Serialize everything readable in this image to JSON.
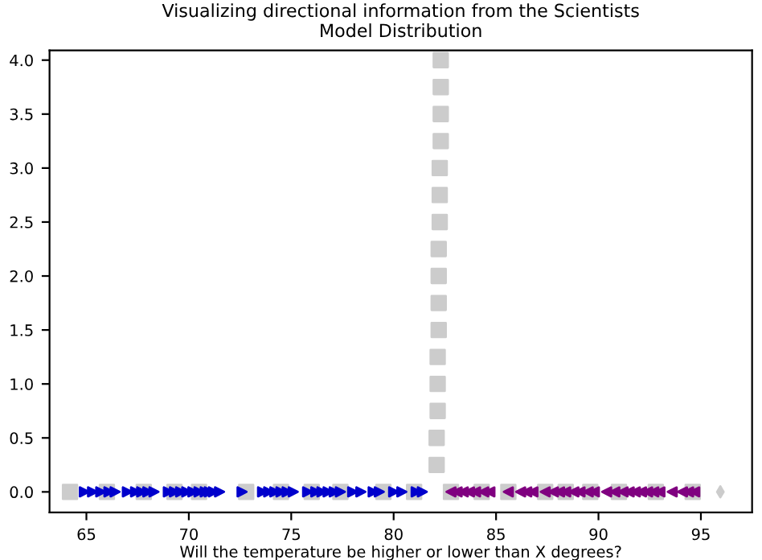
{
  "chart_data": {
    "type": "scatter",
    "title": "Visualizing directional information from the Scientists\nModel Distribution",
    "xlabel": "Will the temperature be higher or lower than X degrees?",
    "xlim": [
      63.2,
      97.5
    ],
    "ylim": [
      -0.19,
      4.09
    ],
    "xticks": [
      65,
      70,
      75,
      80,
      85,
      90,
      95
    ],
    "yticks": [
      {
        "value": 0,
        "label": "0.0"
      },
      {
        "value": 0.5,
        "label": "0.5"
      },
      {
        "value": 1,
        "label": "1.0"
      },
      {
        "value": 1.5,
        "label": "1.5"
      },
      {
        "value": 2,
        "label": "2.0"
      },
      {
        "value": 2.5,
        "label": "2.5"
      },
      {
        "value": 3,
        "label": "3.0"
      },
      {
        "value": 3.5,
        "label": "3.5"
      },
      {
        "value": 4,
        "label": "4.0"
      }
    ],
    "grid": false,
    "legend": false,
    "series": [
      {
        "color": "#cccccc",
        "marker": "square",
        "x": [
          64.2,
          66.0,
          67.8,
          69.3,
          70.5,
          72.8,
          74.5,
          76.0,
          77.4,
          79.5,
          81.0,
          82.8,
          84.3,
          85.6,
          87.4,
          88.4,
          89.6,
          91.0,
          92.8,
          94.6,
          82.1,
          82.1,
          82.15,
          82.15,
          82.15,
          82.2,
          82.2,
          82.2,
          82.2,
          82.25,
          82.25,
          82.25,
          82.3,
          82.3,
          82.3,
          82.3
        ],
        "values": [
          0,
          0,
          0,
          0,
          0,
          0,
          0,
          0,
          0,
          0,
          0,
          0,
          0,
          0,
          0,
          0,
          0,
          0,
          0,
          0,
          0.25,
          0.5,
          0.75,
          1.0,
          1.25,
          1.5,
          1.75,
          2.0,
          2.25,
          2.5,
          2.75,
          3.0,
          3.25,
          3.5,
          3.75,
          4.0
        ]
      },
      {
        "color": "#0000cc",
        "marker": "triangle-right",
        "x": [
          64.9,
          65.3,
          65.7,
          66.1,
          66.4,
          67.0,
          67.4,
          67.7,
          68.0,
          68.3,
          69.0,
          69.3,
          69.6,
          69.9,
          70.2,
          70.5,
          70.8,
          71.0,
          71.2,
          71.5,
          72.6,
          73.6,
          73.9,
          74.2,
          74.5,
          74.8,
          75.1,
          75.8,
          76.2,
          76.5,
          76.8,
          77.1,
          77.4,
          78.0,
          78.4,
          79.0,
          79.3,
          80.0,
          80.4,
          81.1,
          81.4
        ],
        "values": [
          0,
          0,
          0,
          0,
          0,
          0,
          0,
          0,
          0,
          0,
          0,
          0,
          0,
          0,
          0,
          0,
          0,
          0,
          0,
          0,
          0,
          0,
          0,
          0,
          0,
          0,
          0,
          0,
          0,
          0,
          0,
          0,
          0,
          0,
          0,
          0,
          0,
          0,
          0,
          0,
          0
        ]
      },
      {
        "color": "#800080",
        "marker": "triangle-left",
        "x": [
          82.8,
          83.1,
          83.4,
          83.7,
          84.0,
          84.4,
          84.7,
          85.6,
          86.2,
          86.5,
          86.8,
          87.4,
          87.8,
          88.1,
          88.4,
          88.8,
          89.1,
          89.5,
          89.8,
          90.4,
          90.8,
          91.2,
          91.5,
          91.8,
          92.1,
          92.4,
          92.7,
          93.0,
          93.6,
          94.1,
          94.4,
          94.7
        ],
        "values": [
          0,
          0,
          0,
          0,
          0,
          0,
          0,
          0,
          0,
          0,
          0,
          0,
          0,
          0,
          0,
          0,
          0,
          0,
          0,
          0,
          0,
          0,
          0,
          0,
          0,
          0,
          0,
          0,
          0,
          0,
          0,
          0
        ]
      },
      {
        "color": "#cccccc",
        "marker": "diamond",
        "x": [
          95.95
        ],
        "values": [
          0
        ]
      }
    ]
  }
}
